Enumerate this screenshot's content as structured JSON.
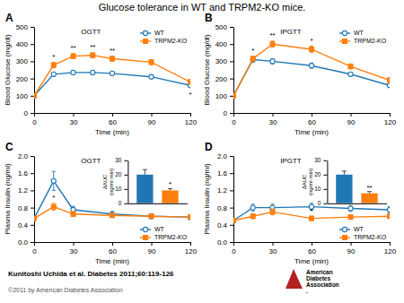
{
  "title": "Glucose tolerance in WT and TRPM2-KO mice.",
  "annotations": [
    {
      "text": "Kunitoshi Uchida et al. Diabetes 2011;60:119-126"
    },
    {
      "text": "©2011 by American Diabetes Association"
    },
    {
      "text": "American"
    },
    {
      "text": "Diabetes"
    },
    {
      "text": "Association"
    },
    {
      "text": "."
    }
  ],
  "chart_data": [
    {
      "type": "line",
      "title": "A",
      "subtitle": "OGTT",
      "x_label": "Time (min)",
      "y_label": "Blood Glucose (mg/dl)",
      "x": [
        0,
        15,
        30,
        45,
        60,
        90,
        120
      ],
      "xlim": [
        0,
        120
      ],
      "ylim": [
        0,
        500
      ],
      "xticks": [
        0,
        30,
        60,
        90,
        120
      ],
      "yticks": [
        0,
        100,
        200,
        300,
        400,
        500
      ],
      "legend": "upper right",
      "series": [
        {
          "name": "WT",
          "marker": "circle",
          "values": [
            100,
            225,
            235,
            235,
            230,
            210,
            160
          ],
          "errors": [
            4,
            10,
            10,
            10,
            10,
            10,
            10
          ]
        },
        {
          "name": "TRPM2-KO",
          "marker": "square",
          "values": [
            100,
            278,
            330,
            335,
            315,
            295,
            180
          ],
          "errors": [
            4,
            15,
            15,
            15,
            15,
            15,
            15
          ]
        }
      ],
      "annotations": [
        {
          "x": 15,
          "text": "*",
          "series": "TRPM2-KO",
          "position": "above"
        },
        {
          "x": 30,
          "text": "**",
          "series": "TRPM2-KO",
          "position": "above"
        },
        {
          "x": 45,
          "text": "**",
          "series": "TRPM2-KO",
          "position": "above"
        },
        {
          "x": 60,
          "text": "**",
          "series": "TRPM2-KO",
          "position": "above"
        },
        {
          "x": 120,
          "text": "*",
          "series": "WT",
          "position": "below"
        }
      ]
    },
    {
      "type": "line",
      "title": "B",
      "subtitle": "IPGTT",
      "x_label": "Time (min)",
      "y_label": "Blood Glucose (mg/dl)",
      "x": [
        0,
        15,
        30,
        60,
        90,
        120
      ],
      "xlim": [
        0,
        120
      ],
      "ylim": [
        0,
        500
      ],
      "xticks": [
        0,
        30,
        60,
        90,
        120
      ],
      "yticks": [
        0,
        100,
        200,
        300,
        400,
        500
      ],
      "legend": "upper right",
      "series": [
        {
          "name": "WT",
          "marker": "circle",
          "values": [
            100,
            310,
            300,
            275,
            225,
            160
          ],
          "errors": [
            5,
            15,
            15,
            15,
            12,
            10
          ]
        },
        {
          "name": "TRPM2-KO",
          "marker": "square",
          "values": [
            100,
            315,
            400,
            370,
            270,
            190
          ],
          "errors": [
            5,
            15,
            18,
            20,
            15,
            15
          ]
        }
      ],
      "annotations": [
        {
          "x": 15,
          "text": "*",
          "series": "TRPM2-KO",
          "position": "above"
        },
        {
          "x": 30,
          "text": "**",
          "series": "TRPM2-KO",
          "position": "above"
        },
        {
          "x": 60,
          "text": "*",
          "series": "TRPM2-KO",
          "position": "above"
        }
      ]
    },
    {
      "type": "line",
      "title": "C",
      "subtitle": "OGTT",
      "x_label": "Time (min)",
      "y_label": "Plasma Insulin (ng/ml)",
      "x": [
        0,
        15,
        30,
        60,
        90,
        120
      ],
      "xlim": [
        0,
        120
      ],
      "ylim": [
        0,
        2.0
      ],
      "xticks": [
        0,
        30,
        60,
        90,
        120
      ],
      "yticks": [
        {
          "value": 0,
          "label": "0.0"
        },
        0.4,
        0.8,
        1.2,
        1.6,
        {
          "value": 2.0,
          "label": "2.0"
        }
      ],
      "legend": "lower right",
      "series": [
        {
          "name": "WT",
          "marker": "circle",
          "values": [
            0.55,
            1.42,
            0.75,
            0.65,
            0.6,
            0.58
          ],
          "errors": [
            0.05,
            0.22,
            0.08,
            0.06,
            0.06,
            0.06
          ]
        },
        {
          "name": "TRPM2-KO",
          "marker": "square",
          "values": [
            0.55,
            0.82,
            0.65,
            0.62,
            0.6,
            0.58
          ],
          "errors": [
            0.04,
            0.08,
            0.06,
            0.05,
            0.05,
            0.05
          ]
        }
      ],
      "annotations": [
        {
          "x": 15,
          "text": "*",
          "series": "TRPM2-KO",
          "position": "above"
        }
      ],
      "inset": {
        "type": "bar",
        "y_label": "∆AUC\n(ng/ml·min)",
        "categories": [
          null,
          null
        ],
        "values": [
          20,
          9
        ],
        "errors": [
          3.5,
          1.2
        ],
        "ylim": [
          0,
          30
        ],
        "yticks": [
          0,
          10,
          20,
          30
        ],
        "annotations": [
          {
            "text": "*",
            "index": 1
          }
        ]
      }
    },
    {
      "type": "line",
      "title": "D",
      "subtitle": "IPGTT",
      "x_label": "Time (min)",
      "y_label": "Plasma Insulin (ng/ml)",
      "x": [
        0,
        15,
        30,
        60,
        90,
        120
      ],
      "xlim": [
        0,
        120
      ],
      "ylim": [
        0,
        2.0
      ],
      "xticks": [
        0,
        30,
        60,
        90,
        120
      ],
      "yticks": [
        {
          "value": 0,
          "label": "0.0"
        },
        0.4,
        0.8,
        1.2,
        1.6,
        {
          "value": 2.0,
          "label": "2.0"
        }
      ],
      "legend": "lower right",
      "series": [
        {
          "name": "WT",
          "marker": "circle",
          "values": [
            0.5,
            0.8,
            0.8,
            0.82,
            0.78,
            0.75
          ],
          "errors": [
            0.05,
            0.08,
            0.08,
            0.08,
            0.07,
            0.07
          ]
        },
        {
          "name": "TRPM2-KO",
          "marker": "square",
          "values": [
            0.5,
            0.6,
            0.7,
            0.55,
            0.58,
            0.6
          ],
          "errors": [
            0.04,
            0.06,
            0.07,
            0.05,
            0.05,
            0.05
          ]
        }
      ],
      "annotations": [
        {
          "x": 60,
          "text": "*",
          "series": "TRPM2-KO",
          "position": "above"
        }
      ],
      "inset": {
        "type": "bar",
        "y_label": "∆AUC\n(ng/ml·min)",
        "categories": [
          null,
          null
        ],
        "values": [
          20,
          7
        ],
        "errors": [
          2.5,
          1.2
        ],
        "ylim": [
          0,
          30
        ],
        "yticks": [
          0,
          10,
          20,
          30
        ],
        "annotations": [
          {
            "text": "**",
            "index": 1
          }
        ]
      }
    }
  ]
}
